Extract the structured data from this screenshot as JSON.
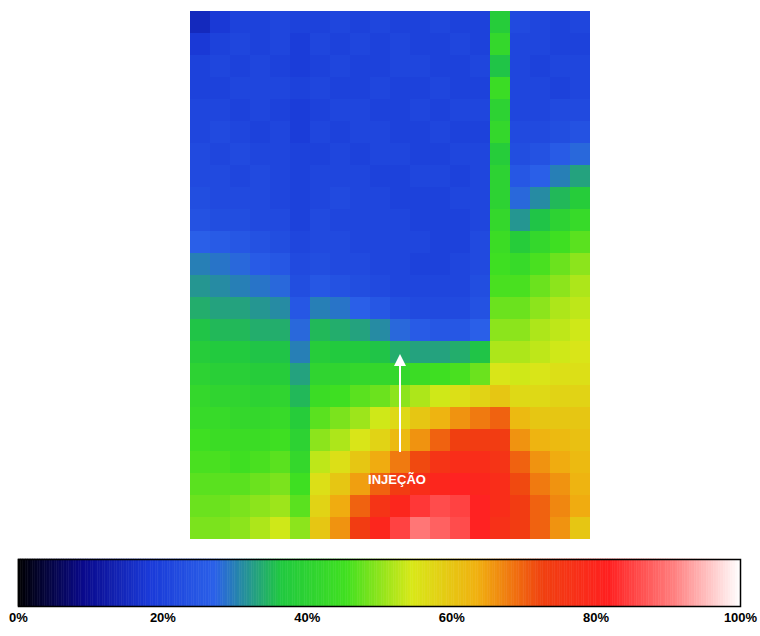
{
  "chart_data": {
    "type": "heatmap",
    "tick_labels": false,
    "cells": [
      [
        15,
        18,
        20,
        20,
        21,
        20,
        20,
        21,
        20,
        21,
        20,
        20,
        21,
        20,
        20,
        38,
        22,
        21,
        20,
        21
      ],
      [
        18,
        20,
        21,
        20,
        21,
        19,
        21,
        20,
        21,
        20,
        21,
        20,
        20,
        21,
        20,
        42,
        21,
        21,
        20,
        20
      ],
      [
        20,
        21,
        20,
        21,
        20,
        19,
        20,
        21,
        20,
        20,
        21,
        21,
        20,
        20,
        21,
        36,
        21,
        20,
        21,
        21
      ],
      [
        20,
        20,
        21,
        21,
        21,
        20,
        21,
        20,
        20,
        21,
        20,
        20,
        21,
        20,
        20,
        44,
        21,
        21,
        20,
        21
      ],
      [
        21,
        21,
        20,
        21,
        20,
        19,
        20,
        21,
        21,
        20,
        20,
        21,
        20,
        21,
        21,
        40,
        21,
        21,
        22,
        22
      ],
      [
        21,
        22,
        21,
        20,
        21,
        19,
        21,
        20,
        21,
        21,
        20,
        20,
        21,
        20,
        20,
        42,
        22,
        22,
        23,
        24
      ],
      [
        22,
        21,
        22,
        21,
        21,
        20,
        20,
        21,
        20,
        21,
        21,
        20,
        20,
        21,
        21,
        38,
        23,
        24,
        26,
        28
      ],
      [
        22,
        22,
        21,
        22,
        21,
        20,
        21,
        21,
        21,
        20,
        20,
        21,
        21,
        20,
        21,
        40,
        25,
        27,
        30,
        33
      ],
      [
        23,
        22,
        22,
        22,
        21,
        20,
        21,
        22,
        21,
        21,
        20,
        20,
        20,
        21,
        21,
        40,
        28,
        31,
        35,
        38
      ],
      [
        24,
        23,
        23,
        22,
        22,
        20,
        22,
        21,
        21,
        21,
        21,
        20,
        20,
        20,
        21,
        42,
        32,
        36,
        40,
        43
      ],
      [
        27,
        26,
        25,
        24,
        23,
        21,
        22,
        22,
        21,
        21,
        21,
        21,
        20,
        20,
        22,
        44,
        38,
        42,
        45,
        47
      ],
      [
        30,
        29,
        28,
        26,
        25,
        22,
        23,
        22,
        22,
        21,
        21,
        20,
        20,
        21,
        22,
        45,
        43,
        46,
        48,
        50
      ],
      [
        32,
        31,
        30,
        29,
        28,
        23,
        25,
        24,
        23,
        22,
        21,
        21,
        21,
        21,
        23,
        46,
        46,
        48,
        50,
        52
      ],
      [
        34,
        33,
        33,
        32,
        31,
        25,
        30,
        29,
        27,
        25,
        23,
        22,
        22,
        22,
        24,
        48,
        48,
        50,
        52,
        53
      ],
      [
        36,
        35,
        35,
        34,
        34,
        28,
        35,
        34,
        33,
        31,
        28,
        26,
        25,
        25,
        27,
        50,
        50,
        52,
        53,
        54
      ],
      [
        38,
        37,
        37,
        36,
        36,
        30,
        38,
        37,
        37,
        36,
        34,
        33,
        33,
        34,
        36,
        52,
        52,
        53,
        54,
        55
      ],
      [
        40,
        39,
        39,
        38,
        38,
        33,
        41,
        41,
        42,
        42,
        42,
        44,
        45,
        46,
        48,
        55,
        54,
        55,
        56,
        56
      ],
      [
        42,
        41,
        41,
        40,
        41,
        35,
        44,
        45,
        47,
        48,
        50,
        52,
        54,
        56,
        58,
        60,
        57,
        57,
        58,
        58
      ],
      [
        43,
        43,
        42,
        42,
        43,
        38,
        47,
        49,
        51,
        54,
        57,
        60,
        63,
        66,
        68,
        70,
        62,
        60,
        60,
        60
      ],
      [
        45,
        44,
        44,
        44,
        45,
        40,
        50,
        52,
        55,
        58,
        62,
        66,
        70,
        73,
        74,
        74,
        66,
        63,
        62,
        61
      ],
      [
        46,
        46,
        45,
        46,
        47,
        42,
        53,
        56,
        60,
        64,
        68,
        72,
        76,
        78,
        78,
        76,
        70,
        66,
        64,
        62
      ],
      [
        47,
        47,
        47,
        48,
        49,
        45,
        56,
        60,
        65,
        70,
        74,
        78,
        80,
        82,
        80,
        78,
        72,
        68,
        66,
        63
      ],
      [
        48,
        48,
        49,
        50,
        51,
        47,
        58,
        64,
        70,
        76,
        80,
        84,
        86,
        85,
        82,
        78,
        74,
        70,
        67,
        64
      ],
      [
        49,
        49,
        50,
        52,
        54,
        50,
        60,
        66,
        74,
        80,
        85,
        90,
        88,
        86,
        82,
        77,
        74,
        70,
        66,
        60
      ]
    ],
    "colorbar": {
      "range": [
        0,
        100
      ],
      "ticks": [
        {
          "value": 0,
          "label": "0%"
        },
        {
          "value": 20,
          "label": "20%"
        },
        {
          "value": 40,
          "label": "40%"
        },
        {
          "value": 60,
          "label": "60%"
        },
        {
          "value": 80,
          "label": "80%"
        },
        {
          "value": 100,
          "label": "100%"
        }
      ]
    },
    "annotations": [
      {
        "text": "INJEÇÃO"
      }
    ]
  }
}
